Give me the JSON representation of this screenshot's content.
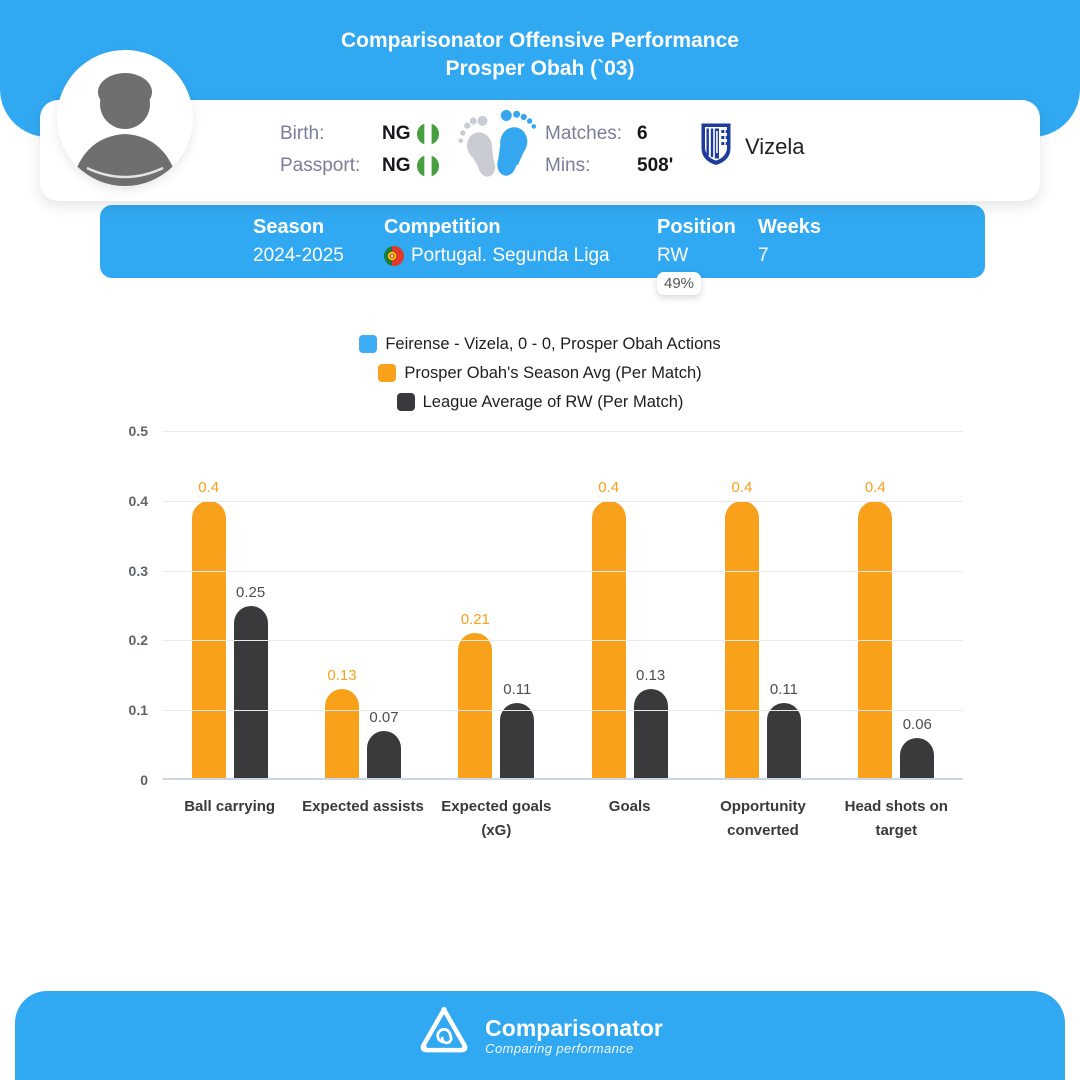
{
  "header": {
    "title_line1": "Comparisonator Offensive Performance",
    "title_line2": "Prosper Obah (`03)"
  },
  "player_card": {
    "birth_label": "Birth:",
    "birth_value": "NG",
    "passport_label": "Passport:",
    "passport_value": "NG",
    "matches_label": "Matches:",
    "matches_value": "6",
    "mins_label": "Mins:",
    "mins_value": "508'",
    "club_name": "Vizela"
  },
  "season_bar": {
    "season_label": "Season",
    "season_value": "2024-2025",
    "competition_label": "Competition",
    "competition_value": "Portugal. Segunda Liga",
    "position_label": "Position",
    "position_value": "RW",
    "weeks_label": "Weeks",
    "weeks_value": "7",
    "percent_badge": "49%"
  },
  "legend": [
    {
      "label": "Feirense - Vizela, 0 - 0, Prosper Obah Actions",
      "color": "#3CACF5"
    },
    {
      "label": "Prosper Obah's Season Avg (Per Match)",
      "color": "#F9A11B"
    },
    {
      "label": "League Average of RW (Per Match)",
      "color": "#3A3A3C"
    }
  ],
  "chart_data": {
    "type": "bar",
    "categories": [
      "Ball carrying",
      "Expected assists",
      "Expected goals (xG)",
      "Goals",
      "Opportunity converted",
      "Head shots on target"
    ],
    "categories_display": [
      [
        "Ball carrying"
      ],
      [
        "Expected assists"
      ],
      [
        "Expected goals",
        "(xG)"
      ],
      [
        "Goals"
      ],
      [
        "Opportunity",
        "converted"
      ],
      [
        "Head shots on",
        "target"
      ]
    ],
    "series": [
      {
        "name": "Feirense - Vizela, 0 - 0, Prosper Obah Actions",
        "color": "#3CACF5",
        "label_color": "#3CACF5",
        "values": [
          0,
          0,
          0,
          0,
          0,
          0
        ]
      },
      {
        "name": "Prosper Obah's Season Avg (Per Match)",
        "color": "#F9A11B",
        "label_color": "#F9A11B",
        "values": [
          0.4,
          0.13,
          0.21,
          0.4,
          0.4,
          0.4
        ]
      },
      {
        "name": "League Average of RW (Per Match)",
        "color": "#3A3A3C",
        "label_color": "#4E4E52",
        "values": [
          0.25,
          0.07,
          0.11,
          0.13,
          0.11,
          0.06
        ]
      }
    ],
    "ylim": [
      0,
      0.5
    ],
    "yticks": [
      0,
      0.1,
      0.2,
      0.3,
      0.4,
      0.5
    ],
    "grid": true,
    "legend_position": "top"
  },
  "footer": {
    "brand": "Comparisonator",
    "tagline": "Comparing performance"
  },
  "colors": {
    "accent_blue": "#31A9F2",
    "series_orange": "#F9A11B",
    "series_dark": "#3A3A3C",
    "muted_label": "#7C7C9C"
  }
}
